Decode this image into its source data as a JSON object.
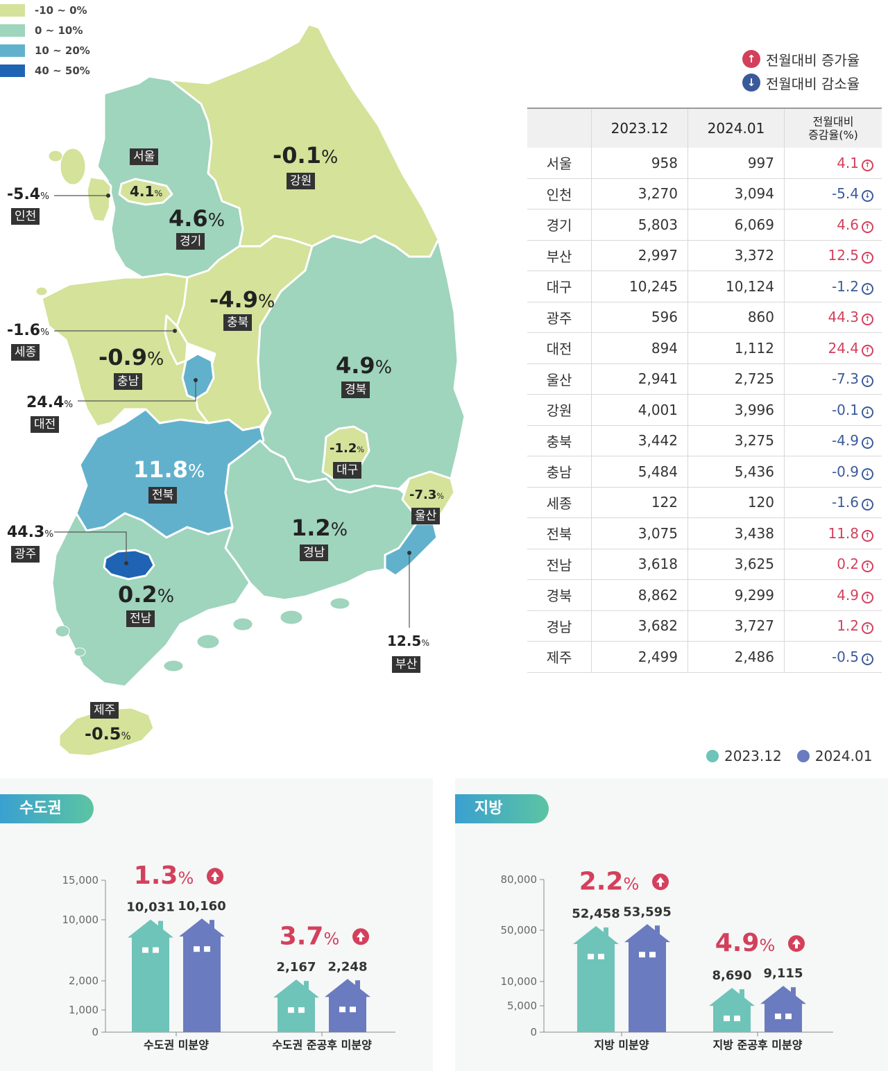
{
  "legend": {
    "title": "",
    "items": [
      {
        "label": "-10 ~ 0%",
        "color": "#d4e29a"
      },
      {
        "label": "0 ~ 10%",
        "color": "#9fd4bd"
      },
      {
        "label": "10 ~ 20%",
        "color": "#62b1cc"
      },
      {
        "label": "40 ~ 50%",
        "color": "#1f63b4"
      }
    ]
  },
  "map": {
    "regions": [
      {
        "name": "서울",
        "value": "4.1",
        "pct": "%"
      },
      {
        "name": "인천",
        "value": "-5.4",
        "pct": "%"
      },
      {
        "name": "경기",
        "value": "4.6",
        "pct": "%"
      },
      {
        "name": "강원",
        "value": "-0.1",
        "pct": "%"
      },
      {
        "name": "충북",
        "value": "-4.9",
        "pct": "%"
      },
      {
        "name": "세종",
        "value": "-1.6",
        "pct": "%"
      },
      {
        "name": "충남",
        "value": "-0.9",
        "pct": "%"
      },
      {
        "name": "대전",
        "value": "24.4",
        "pct": "%"
      },
      {
        "name": "경북",
        "value": "4.9",
        "pct": "%"
      },
      {
        "name": "대구",
        "value": "-1.2",
        "pct": "%"
      },
      {
        "name": "전북",
        "value": "11.8",
        "pct": "%"
      },
      {
        "name": "울산",
        "value": "-7.3",
        "pct": "%"
      },
      {
        "name": "광주",
        "value": "44.3",
        "pct": "%"
      },
      {
        "name": "경남",
        "value": "1.2",
        "pct": "%"
      },
      {
        "name": "전남",
        "value": "0.2",
        "pct": "%"
      },
      {
        "name": "부산",
        "value": "12.5",
        "pct": "%"
      },
      {
        "name": "제주",
        "value": "-0.5",
        "pct": "%"
      }
    ]
  },
  "table_legend": {
    "up_label": "전월대비 증가율",
    "down_label": "전월대비 감소율",
    "up_color": "#d3405c",
    "down_color": "#3a5a99"
  },
  "table": {
    "headers": [
      "",
      "2023.12",
      "2024.01",
      "전월대비",
      "증감율(%)"
    ],
    "rows": [
      {
        "region": "서울",
        "dec": "958",
        "jan": "997",
        "chg": "4.1",
        "dir": "up"
      },
      {
        "region": "인천",
        "dec": "3,270",
        "jan": "3,094",
        "chg": "-5.4",
        "dir": "down"
      },
      {
        "region": "경기",
        "dec": "5,803",
        "jan": "6,069",
        "chg": "4.6",
        "dir": "up"
      },
      {
        "region": "부산",
        "dec": "2,997",
        "jan": "3,372",
        "chg": "12.5",
        "dir": "up"
      },
      {
        "region": "대구",
        "dec": "10,245",
        "jan": "10,124",
        "chg": "-1.2",
        "dir": "down"
      },
      {
        "region": "광주",
        "dec": "596",
        "jan": "860",
        "chg": "44.3",
        "dir": "up"
      },
      {
        "region": "대전",
        "dec": "894",
        "jan": "1,112",
        "chg": "24.4",
        "dir": "up"
      },
      {
        "region": "울산",
        "dec": "2,941",
        "jan": "2,725",
        "chg": "-7.3",
        "dir": "down"
      },
      {
        "region": "강원",
        "dec": "4,001",
        "jan": "3,996",
        "chg": "-0.1",
        "dir": "down"
      },
      {
        "region": "충북",
        "dec": "3,442",
        "jan": "3,275",
        "chg": "-4.9",
        "dir": "down"
      },
      {
        "region": "충남",
        "dec": "5,484",
        "jan": "5,436",
        "chg": "-0.9",
        "dir": "down"
      },
      {
        "region": "세종",
        "dec": "122",
        "jan": "120",
        "chg": "-1.6",
        "dir": "down"
      },
      {
        "region": "전북",
        "dec": "3,075",
        "jan": "3,438",
        "chg": "11.8",
        "dir": "up"
      },
      {
        "region": "전남",
        "dec": "3,618",
        "jan": "3,625",
        "chg": "0.2",
        "dir": "up"
      },
      {
        "region": "경북",
        "dec": "8,862",
        "jan": "9,299",
        "chg": "4.9",
        "dir": "up"
      },
      {
        "region": "경남",
        "dec": "3,682",
        "jan": "3,727",
        "chg": "1.2",
        "dir": "up"
      },
      {
        "region": "제주",
        "dec": "2,499",
        "jan": "2,486",
        "chg": "-0.5",
        "dir": "down"
      }
    ]
  },
  "series_legend": {
    "s1": "2023.12",
    "s1_color": "#6ec4b8",
    "s2": "2024.01",
    "s2_color": "#6a7cbf"
  },
  "chart_data": [
    {
      "type": "bar",
      "title": "수도권",
      "categories": [
        "수도권 미분양",
        "수도권 준공후 미분양"
      ],
      "series": [
        {
          "name": "2023.12",
          "values": [
            10031,
            2167
          ]
        },
        {
          "name": "2024.01",
          "values": [
            10160,
            2248
          ]
        }
      ],
      "value_labels": [
        [
          "10,031",
          "2,167"
        ],
        [
          "10,160",
          "2,248"
        ]
      ],
      "change": [
        "1.3",
        "3.7"
      ],
      "pct": "%",
      "yticks": [
        0,
        1000,
        2000,
        10000,
        15000
      ],
      "ytick_labels": [
        "0",
        "1,000",
        "2,000",
        "10,000",
        "15,000"
      ],
      "axis_scale": "broken (non-linear)"
    },
    {
      "type": "bar",
      "title": "지방",
      "categories": [
        "지방 미분양",
        "지방 준공후 미분양"
      ],
      "series": [
        {
          "name": "2023.12",
          "values": [
            52458,
            8690
          ]
        },
        {
          "name": "2024.01",
          "values": [
            53595,
            9115
          ]
        }
      ],
      "value_labels": [
        [
          "52,458",
          "8,690"
        ],
        [
          "53,595",
          "9,115"
        ]
      ],
      "change": [
        "2.2",
        "4.9"
      ],
      "pct": "%",
      "yticks": [
        0,
        5000,
        10000,
        50000,
        80000
      ],
      "ytick_labels": [
        "0",
        "5,000",
        "10,000",
        "50,000",
        "80,000"
      ],
      "axis_scale": "broken (non-linear)"
    }
  ]
}
